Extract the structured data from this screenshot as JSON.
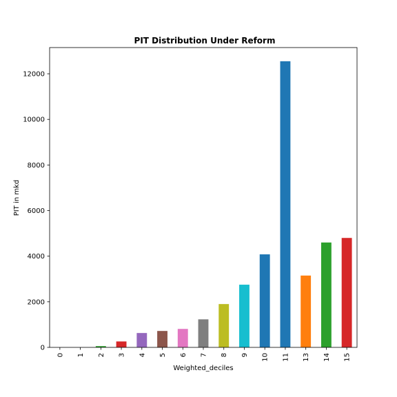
{
  "chart_data": {
    "type": "bar",
    "title": "PIT Distribution Under Reform",
    "xlabel": "Weighted_deciles",
    "ylabel": "PIT in mkd",
    "categories": [
      "0",
      "1",
      "2",
      "3",
      "4",
      "5",
      "6",
      "7",
      "8",
      "9",
      "10",
      "11",
      "13",
      "14",
      "15"
    ],
    "values": [
      0,
      0,
      55,
      260,
      630,
      720,
      810,
      1230,
      1900,
      2750,
      4080,
      12550,
      3150,
      4600,
      4800
    ],
    "colors": [
      "#1f77b4",
      "#ff7f0e",
      "#2ca02c",
      "#d62728",
      "#9467bd",
      "#8c564b",
      "#e377c2",
      "#7f7f7f",
      "#bcbd22",
      "#17becf",
      "#1f77b4",
      "#1f77b4",
      "#ff7f0e",
      "#2ca02c",
      "#d62728"
    ],
    "ylim": [
      0,
      13150
    ],
    "yticks": [
      0,
      2000,
      4000,
      6000,
      8000,
      10000,
      12000
    ],
    "grid": false,
    "legend": "none"
  }
}
